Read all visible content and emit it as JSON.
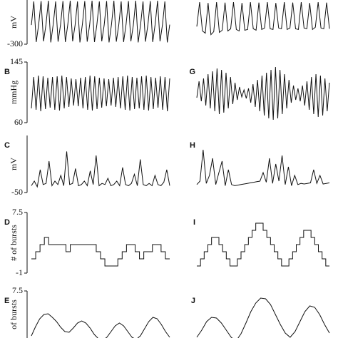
{
  "chart_data": [
    {
      "type": "line",
      "ylabel": "mV",
      "ylim": [
        -300,
        300
      ],
      "yticks": [
        -300
      ],
      "color": "#111111",
      "values": [
        -40,
        280,
        -270,
        -35,
        285,
        -260,
        -40,
        290,
        -275,
        -30,
        280,
        -265,
        -40,
        285,
        -270,
        -35,
        290,
        -260,
        -45,
        280,
        -275,
        -35,
        285,
        -265,
        -40,
        290,
        -270,
        -30,
        280,
        -260,
        -40,
        285,
        -275,
        -35,
        290,
        -265,
        -40,
        280,
        -270,
        -35,
        285,
        -260,
        -45,
        290,
        -275,
        -35,
        280,
        -265,
        -40,
        285,
        -270,
        -30,
        290,
        -260,
        -40,
        280,
        -275,
        -35
      ]
    },
    {
      "type": "line",
      "ylim": [
        -300,
        300
      ],
      "color": "#111111",
      "values": [
        -60,
        270,
        -120,
        -150,
        260,
        -170,
        -130,
        270,
        -140,
        -110,
        265,
        -120,
        -90,
        270,
        -100,
        -120,
        260,
        -110,
        -100,
        270,
        -90,
        -110,
        265,
        -100,
        -80,
        270,
        -90,
        -100,
        260,
        -80,
        -90,
        270,
        -100,
        -80,
        265,
        -90,
        -100,
        270,
        -80,
        -90,
        260,
        -100,
        -70,
        270,
        -80,
        -90,
        265,
        -90
      ]
    },
    {
      "type": "line",
      "label": "B",
      "ylabel": "mmHg",
      "ylim": [
        60,
        145
      ],
      "yticks": [
        145,
        60
      ],
      "color": "#111111",
      "values": [
        80,
        124,
        78,
        126,
        76,
        125,
        79,
        123,
        81,
        124,
        78,
        125,
        77,
        126,
        80,
        124,
        82,
        122,
        84,
        121,
        83,
        123,
        80,
        124,
        78,
        126,
        77,
        125,
        79,
        123,
        81,
        122,
        83,
        121,
        84,
        123,
        82,
        124,
        80,
        125,
        78,
        126,
        77,
        124,
        79,
        123,
        80,
        125,
        78,
        126,
        77,
        124,
        79,
        123,
        81,
        125,
        78,
        124,
        76,
        122
      ]
    },
    {
      "type": "line",
      "label": "G",
      "ylim": [
        60,
        145
      ],
      "color": "#111111",
      "values": [
        95,
        118,
        90,
        122,
        84,
        128,
        80,
        132,
        76,
        136,
        72,
        134,
        74,
        130,
        80,
        124,
        86,
        116,
        92,
        110,
        96,
        106,
        94,
        108,
        88,
        114,
        82,
        120,
        76,
        126,
        70,
        130,
        66,
        134,
        64,
        138,
        66,
        134,
        72,
        128,
        80,
        120,
        88,
        112,
        92,
        108,
        90,
        112,
        84,
        118,
        78,
        124,
        72,
        128,
        68,
        126,
        70,
        122,
        76,
        116
      ]
    },
    {
      "type": "line",
      "label": "C",
      "ylabel": "mV",
      "ylim": [
        -50,
        50
      ],
      "yticks": [
        -50
      ],
      "color": "#111111",
      "values": [
        -38,
        -30,
        -40,
        -10,
        -36,
        -34,
        5,
        -38,
        -30,
        -36,
        -20,
        -38,
        22,
        -36,
        -34,
        -8,
        -38,
        -36,
        -30,
        -38,
        -12,
        -36,
        15,
        -38,
        -34,
        -36,
        -25,
        -38,
        -36,
        -30,
        -38,
        -6,
        -36,
        -38,
        -34,
        -18,
        -38,
        8,
        -36,
        -38,
        -34,
        -38,
        -20,
        -36,
        -38,
        -32,
        -10,
        -38
      ]
    },
    {
      "type": "line",
      "label": "H",
      "ylim": [
        -50,
        50
      ],
      "color": "#111111",
      "values": [
        -36,
        -30,
        25,
        -34,
        -20,
        10,
        -36,
        -15,
        5,
        -38,
        -10,
        -36,
        -38,
        -37,
        -36,
        -35,
        -34,
        -33,
        -32,
        -31,
        -30,
        -15,
        -32,
        10,
        -34,
        0,
        -30,
        15,
        -36,
        -5,
        -38,
        -20,
        -36,
        -34,
        -35,
        -34,
        -33,
        -10,
        -34,
        -20,
        -35,
        -34,
        -33
      ]
    },
    {
      "type": "line",
      "label": "D",
      "ylabel": "# of bursts",
      "ylim": [
        -1,
        7.5
      ],
      "yticks": [
        7.5,
        -1
      ],
      "step": true,
      "color": "#111111",
      "values": [
        1,
        2,
        3,
        4,
        3,
        3,
        3,
        3,
        2,
        3,
        3,
        3,
        3,
        3,
        3,
        2,
        1,
        0,
        0,
        0,
        1,
        2,
        3,
        3,
        2,
        1,
        2,
        2,
        3,
        3,
        2,
        1
      ]
    },
    {
      "type": "line",
      "label": "I",
      "ylim": [
        -1,
        7.5
      ],
      "step": true,
      "color": "#111111",
      "values": [
        0,
        1,
        2,
        3,
        4,
        4,
        3,
        2,
        1,
        0,
        0,
        1,
        2,
        3,
        4,
        5,
        6,
        6,
        5,
        4,
        3,
        2,
        1,
        0,
        0,
        1,
        2,
        3,
        4,
        5,
        5,
        4,
        3,
        2,
        1,
        0
      ]
    },
    {
      "type": "line",
      "label": "E",
      "ylabel": "of bursts",
      "ylim": [
        -1,
        7.5
      ],
      "yticks": [
        7.5
      ],
      "color": "#111111",
      "values": [
        1.2,
        2.5,
        3.6,
        4.2,
        4.3,
        3.8,
        3.2,
        2.4,
        1.8,
        1.7,
        2.3,
        3.0,
        3.3,
        3.0,
        2.3,
        1.4,
        0.8,
        0.6,
        1.0,
        1.8,
        2.6,
        3.0,
        2.6,
        1.8,
        1.0,
        0.7,
        1.2,
        2.2,
        3.2,
        3.8,
        3.6,
        2.8,
        1.8,
        1.0
      ]
    },
    {
      "type": "line",
      "label": "J",
      "ylim": [
        -1,
        7.5
      ],
      "color": "#111111",
      "values": [
        1.0,
        2.0,
        3.2,
        3.8,
        3.7,
        3.0,
        2.0,
        1.0,
        0.5,
        1.5,
        3.0,
        4.6,
        5.8,
        6.5,
        6.4,
        5.6,
        4.2,
        2.8,
        1.6,
        1.0,
        1.8,
        3.2,
        4.6,
        5.4,
        5.2,
        4.2,
        2.8,
        1.6
      ]
    }
  ]
}
